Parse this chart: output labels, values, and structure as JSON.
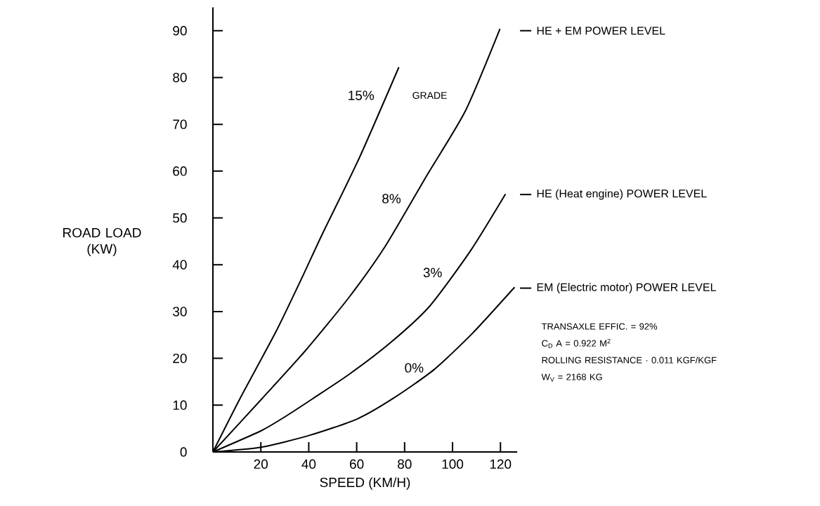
{
  "chart_data": {
    "type": "line",
    "xlabel": "SPEED (KM/H)",
    "ylabel": "ROAD LOAD\n(KW)",
    "xlim": [
      0,
      127
    ],
    "ylim": [
      0,
      95
    ],
    "xticks": [
      20,
      40,
      60,
      80,
      100,
      120
    ],
    "yticks": [
      0,
      10,
      20,
      30,
      40,
      50,
      60,
      70,
      80,
      90
    ],
    "grid": false,
    "marker": "none",
    "line_style": "solid",
    "series": [
      {
        "name": "15%",
        "color": "#000000",
        "x": [
          0,
          11.3,
          26.5,
          37.7,
          45.7,
          60.9,
          77.6
        ],
        "values": [
          0,
          11.4,
          25.9,
          37.8,
          46.6,
          62.6,
          82.2
        ]
      },
      {
        "name": "8%",
        "color": "#000000",
        "x": [
          0,
          20.5,
          38.7,
          56.9,
          72,
          89.2,
          105.4,
          119.8
        ],
        "values": [
          0,
          11.4,
          21.7,
          33.1,
          44,
          59,
          72.9,
          90.4
        ]
      },
      {
        "name": "3%",
        "color": "#000000",
        "x": [
          0,
          20,
          30,
          41.7,
          56.9,
          74,
          90.2,
          107.4,
          122.1
        ],
        "values": [
          0,
          4.5,
          7.5,
          11.4,
          16.6,
          23.3,
          31,
          42.9,
          55.1
        ]
      },
      {
        "name": "0%",
        "color": "#000000",
        "x": [
          0,
          20,
          40,
          60,
          75.1,
          92.3,
          108.4,
          125.9
        ],
        "values": [
          0,
          1,
          3.5,
          7,
          11.4,
          17.6,
          25.4,
          35.2
        ]
      }
    ],
    "annotations": [
      "GRADE",
      "TRANSAXLE EFFIC. = 92%",
      "C$_{D}$ A = 0.922 M$^{2}$",
      "ROLLING RESISTANCE · 0.011 KGF/KGF",
      "W$_{V}$ = 2168 KG"
    ],
    "ref_lines": [
      {
        "axis": "y",
        "value": 90,
        "label": "HE + EM POWER LEVEL"
      },
      {
        "axis": "y",
        "value": 55,
        "label": "HE (Heat engine) POWER LEVEL"
      },
      {
        "axis": "y",
        "value": 35,
        "label": "EM (Electric motor) POWER LEVEL"
      }
    ]
  }
}
